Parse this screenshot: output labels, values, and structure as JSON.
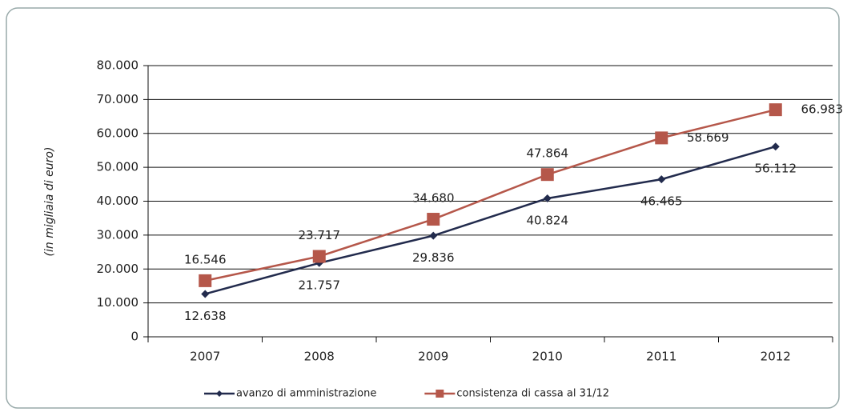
{
  "chart_data": {
    "type": "line",
    "y_label": "(in migliaia di euro)",
    "categories": [
      "2007",
      "2008",
      "2009",
      "2010",
      "2011",
      "2012"
    ],
    "series": [
      {
        "name": "avanzo di amministrazione",
        "color": "#222b4d",
        "marker": "diamond",
        "values": [
          12638,
          21757,
          29836,
          40824,
          46465,
          56112
        ],
        "value_labels": [
          "12.638",
          "21.757",
          "29.836",
          "40.824",
          "46.465",
          "56.112"
        ]
      },
      {
        "name": "consistenza di cassa al 31/12",
        "color": "#b5574a",
        "marker": "square",
        "values": [
          16546,
          23717,
          34680,
          47864,
          58669,
          66983
        ],
        "value_labels": [
          "16.546",
          "23.717",
          "34.680",
          "47.864",
          "58.669",
          "66.983"
        ]
      }
    ],
    "ylim": [
      0,
      80000
    ],
    "yticks": [
      0,
      {
        "value": 10000,
        "label": "10.000"
      },
      {
        "value": 20000,
        "label": "20.000"
      },
      {
        "value": 30000,
        "label": "30.000"
      },
      {
        "value": 40000,
        "label": "40.000"
      },
      {
        "value": 50000,
        "label": "50.000"
      },
      {
        "value": 60000,
        "label": "60.000"
      },
      {
        "value": 70000,
        "label": "70.000"
      },
      {
        "value": 80000,
        "label": "80.000"
      }
    ],
    "grid": true
  }
}
